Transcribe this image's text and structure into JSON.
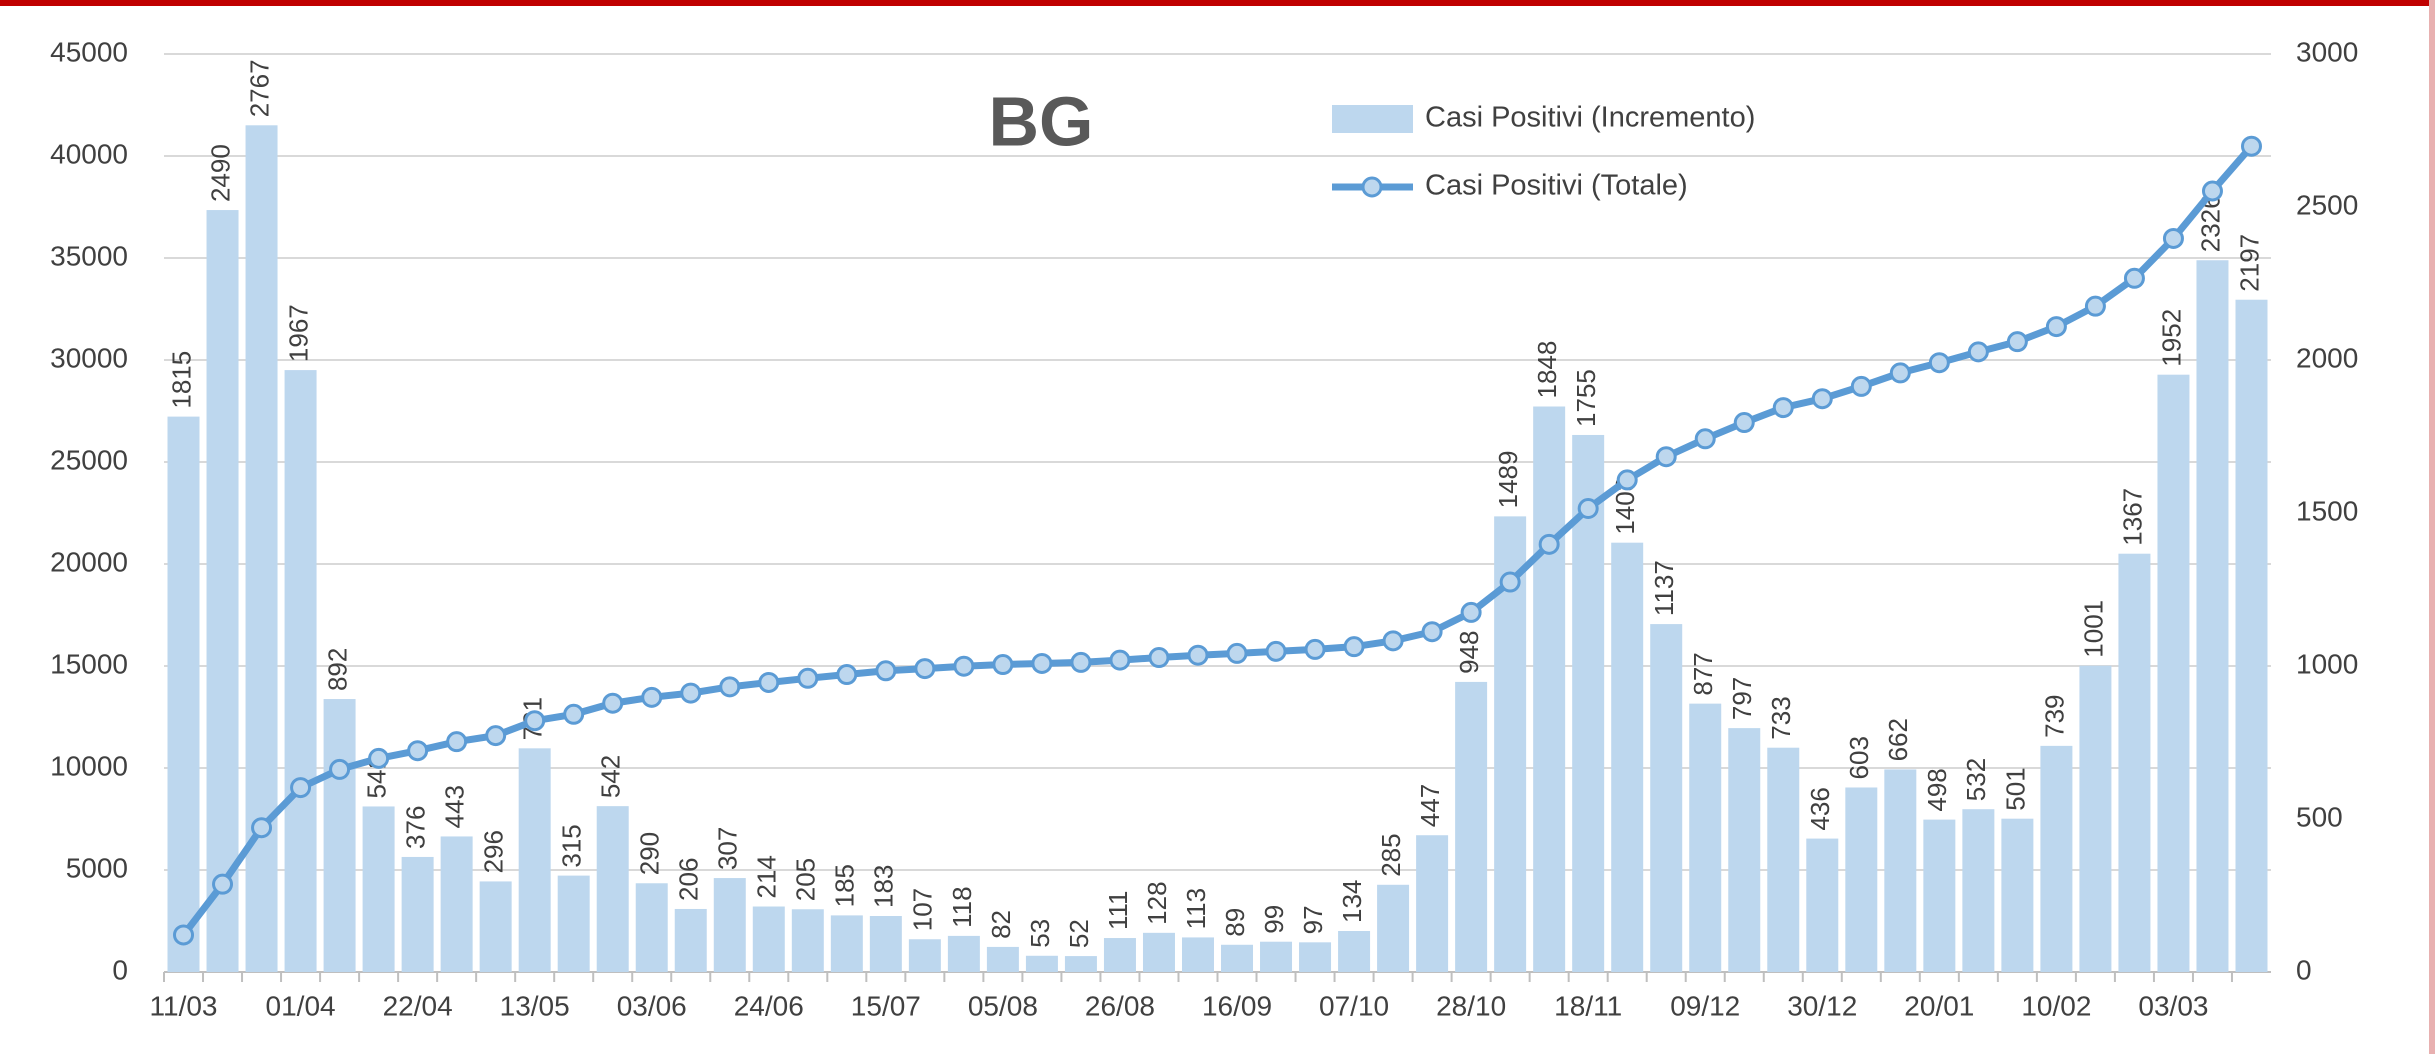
{
  "chart_data": {
    "type": "bar_line",
    "title": "BG",
    "categories": [
      "11/03",
      null,
      null,
      "01/04",
      null,
      null,
      "22/04",
      null,
      null,
      "13/05",
      null,
      null,
      "03/06",
      null,
      null,
      "24/06",
      null,
      null,
      "15/07",
      null,
      null,
      "05/08",
      null,
      null,
      "26/08",
      null,
      null,
      "16/09",
      null,
      null,
      "07/10",
      null,
      null,
      "28/10",
      null,
      null,
      "18/11",
      null,
      null,
      "09/12",
      null,
      null,
      "30/12",
      null,
      null,
      "20/01",
      null,
      null,
      "10/02",
      null,
      null,
      "03/03",
      null,
      null
    ],
    "series": [
      {
        "name": "Casi Positivi (Incremento)",
        "kind": "bar",
        "axis": "y2",
        "color": "#bdd7ee",
        "data_labels": true,
        "values": [
          1815,
          2490,
          2767,
          1967,
          892,
          541,
          376,
          443,
          296,
          731,
          315,
          542,
          290,
          206,
          307,
          214,
          205,
          185,
          183,
          107,
          118,
          82,
          53,
          52,
          111,
          128,
          113,
          89,
          99,
          97,
          134,
          285,
          447,
          948,
          1489,
          1848,
          1755,
          1403,
          1137,
          877,
          797,
          733,
          436,
          603,
          662,
          498,
          532,
          501,
          739,
          1001,
          1367,
          1952,
          2326,
          2197
        ]
      },
      {
        "name": "Casi Positivi (Totale)",
        "kind": "line",
        "axis": "y",
        "color": "#5b9bd5",
        "values": [
          1815,
          4305,
          7072,
          9039,
          9931,
          10472,
          10848,
          11291,
          11587,
          12318,
          12633,
          13175,
          13465,
          13671,
          13978,
          14192,
          14397,
          14582,
          14765,
          14872,
          14990,
          15072,
          15125,
          15177,
          15288,
          15416,
          15529,
          15618,
          15717,
          15814,
          15948,
          16233,
          16680,
          17628,
          19117,
          20965,
          22720,
          24123,
          25260,
          26137,
          26934,
          27667,
          28103,
          28706,
          29368,
          29866,
          30398,
          30899,
          31638,
          32639,
          34006,
          35958,
          38284,
          40481
        ]
      }
    ],
    "ylim": [
      0,
      45000
    ],
    "yticks": [
      0,
      5000,
      10000,
      15000,
      20000,
      25000,
      30000,
      35000,
      40000,
      45000
    ],
    "y2lim": [
      0,
      3000
    ],
    "y2ticks": [
      0,
      500,
      1000,
      1500,
      2000,
      2500,
      3000
    ],
    "grid": true,
    "legend": "top"
  }
}
